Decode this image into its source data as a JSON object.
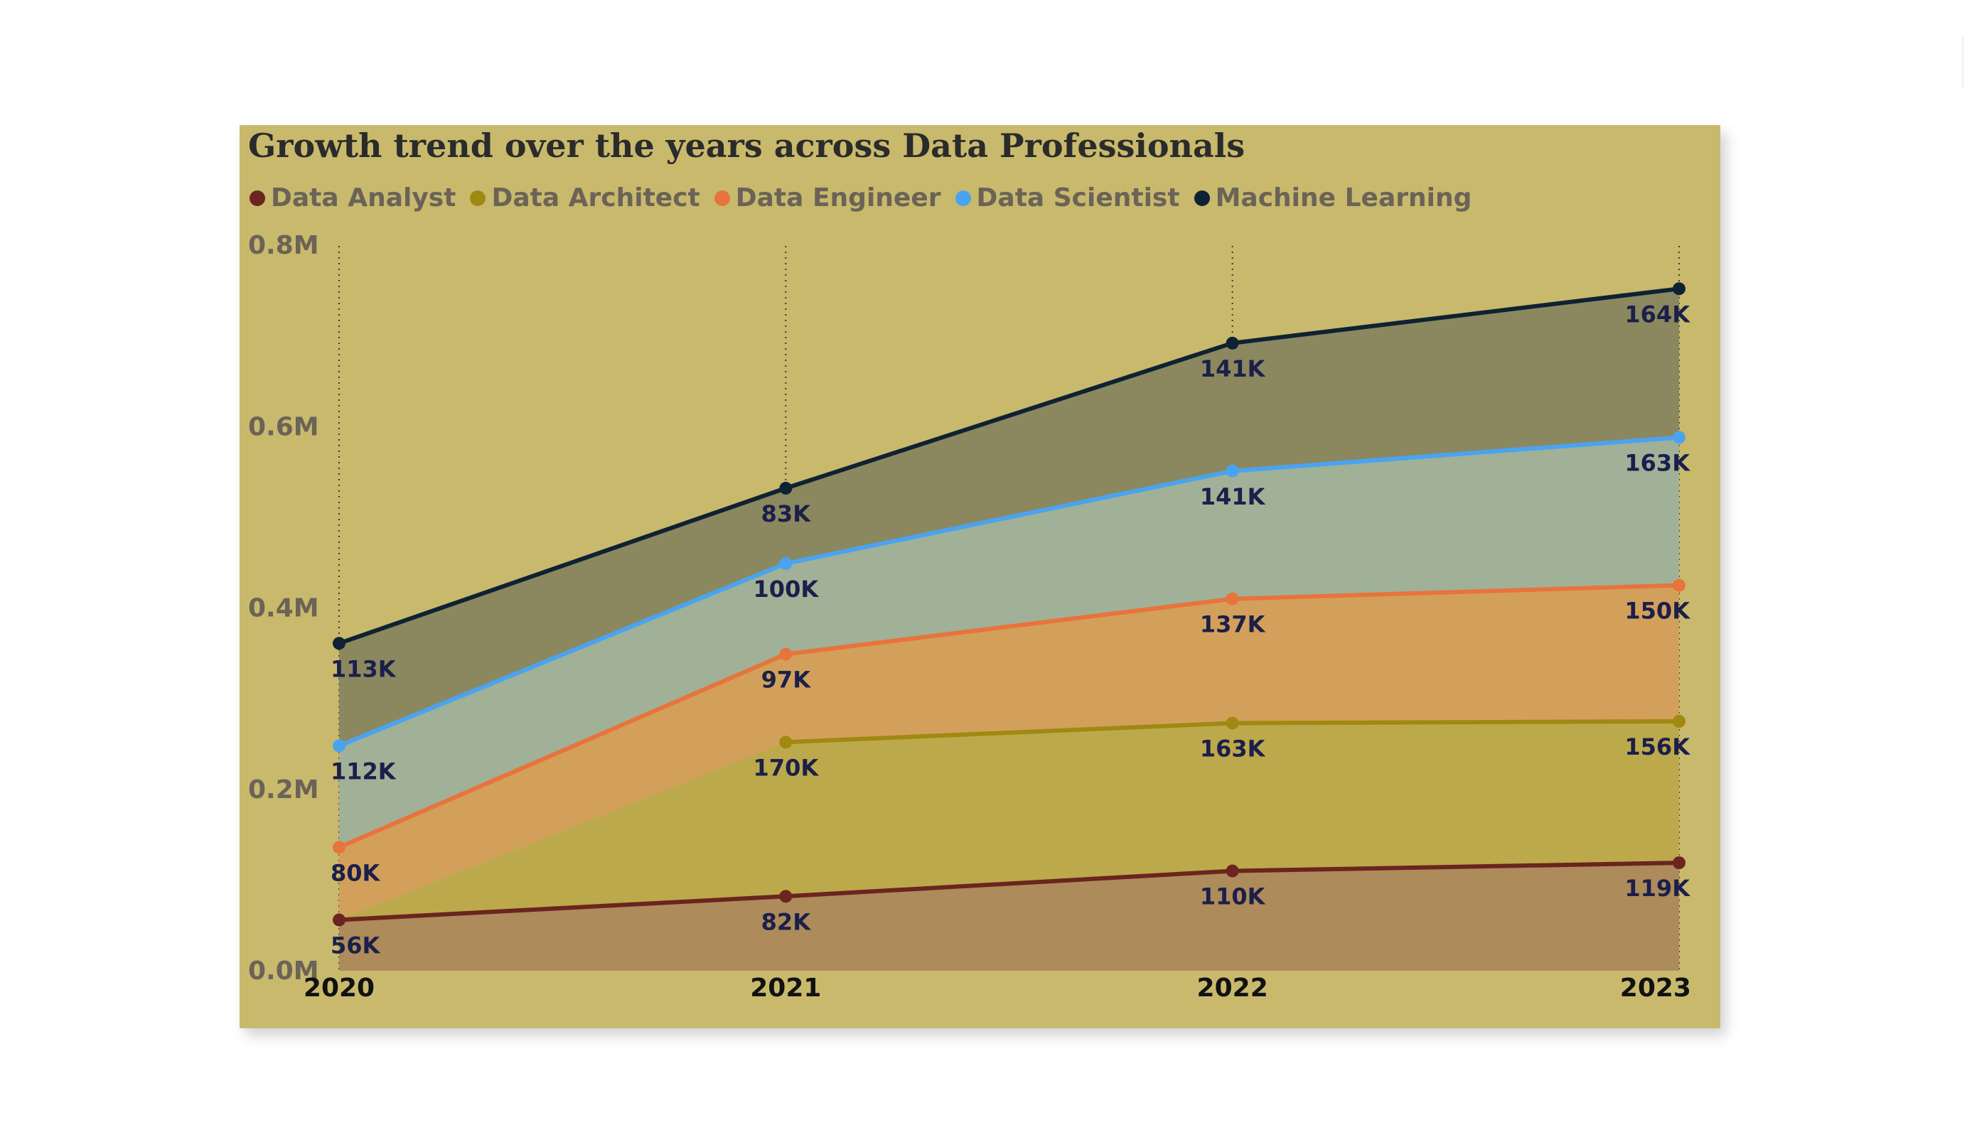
{
  "chart_data": {
    "type": "area",
    "stacked": true,
    "title": "Growth trend over the years across Data Professionals",
    "x": [
      "2020",
      "2021",
      "2022",
      "2023"
    ],
    "yticks": [
      "0.0M",
      "0.2M",
      "0.4M",
      "0.6M",
      "0.8M"
    ],
    "ylim": [
      0,
      800000
    ],
    "legend_position": "top-left",
    "grid": "vertical dotted",
    "series": [
      {
        "name": "Data Analyst",
        "color": "#6b2420",
        "fill": "#ad8b5a",
        "values": [
          56000,
          82000,
          110000,
          119000
        ],
        "labels": [
          "56K",
          "82K",
          "110K",
          "119K"
        ]
      },
      {
        "name": "Data Architect",
        "color": "#a08912",
        "fill": "#bca94b",
        "values": [
          null,
          170000,
          163000,
          156000
        ],
        "labels": [
          "",
          "170K",
          "163K",
          "156K"
        ]
      },
      {
        "name": "Data Engineer",
        "color": "#e8733c",
        "fill": "#d3a05b",
        "values": [
          80000,
          97000,
          137000,
          150000
        ],
        "labels": [
          "80K",
          "97K",
          "137K",
          "150K"
        ]
      },
      {
        "name": "Data Scientist",
        "color": "#4aa3f0",
        "fill": "#a0b198",
        "values": [
          112000,
          100000,
          141000,
          163000
        ],
        "labels": [
          "112K",
          "100K",
          "141K",
          "163K"
        ]
      },
      {
        "name": "Machine Learning",
        "color": "#0f2233",
        "fill": "#8b885f",
        "values": [
          113000,
          83000,
          141000,
          164000
        ],
        "labels": [
          "113K",
          "83K",
          "141K",
          "164K"
        ]
      }
    ]
  }
}
